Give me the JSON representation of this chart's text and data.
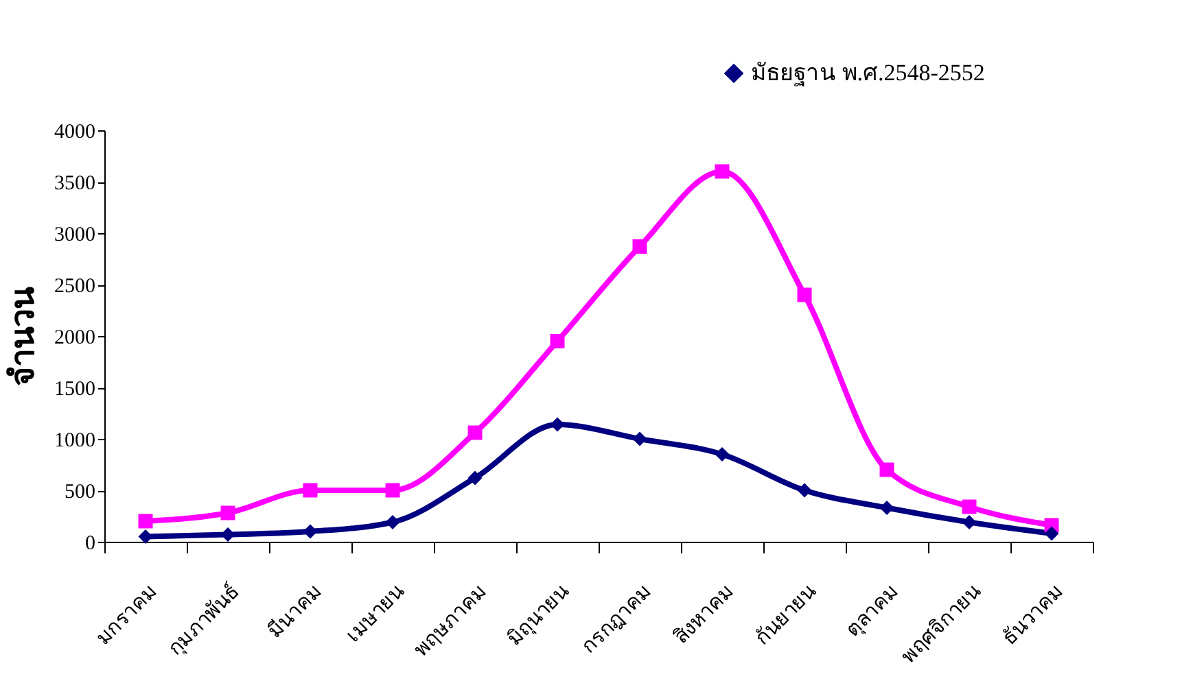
{
  "chart_data": {
    "type": "line",
    "ylabel": "จำนวน",
    "categories": [
      "มกราคม",
      "กุมภาพันธ์",
      "มีนาคม",
      "เมษายน",
      "พฤษภาคม",
      "มิถุนายน",
      "กรกฎาคม",
      "สิงหาคม",
      "กันยายน",
      "ตุลาคม",
      "พฤศจิกายน",
      "ธันวาคม"
    ],
    "series": [
      {
        "color": "#ff00ff",
        "marker": "square",
        "values": [
          200,
          280,
          500,
          500,
          1060,
          1950,
          2870,
          3600,
          2400,
          700,
          340,
          160
        ]
      },
      {
        "name": "มัธยฐาน พ.ศ.2548-2552",
        "color": "#000080",
        "marker": "diamond",
        "values": [
          50,
          70,
          100,
          190,
          620,
          1140,
          1000,
          850,
          500,
          330,
          190,
          80
        ]
      }
    ],
    "ylim": [
      0,
      4000
    ],
    "yticks": [
      0,
      500,
      1000,
      1500,
      2000,
      2500,
      3000,
      3500,
      4000
    ],
    "grid": false,
    "legend": "top right",
    "line_style": "solid"
  }
}
